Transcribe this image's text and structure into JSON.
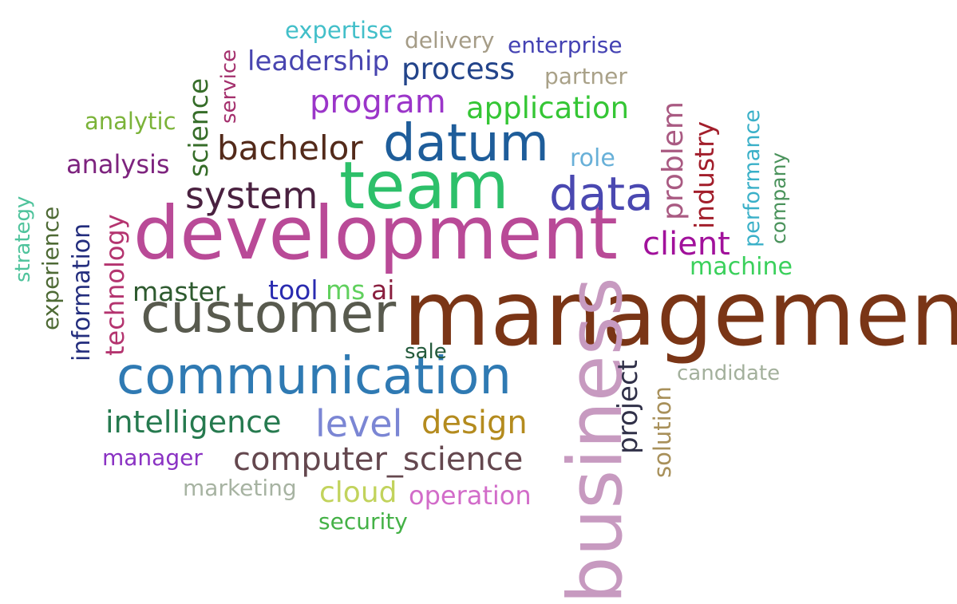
{
  "words": [
    {
      "text": "management",
      "color": "#7a3516"
    },
    {
      "text": "development",
      "color": "#b94a97"
    },
    {
      "text": "team",
      "color": "#2dc06a"
    },
    {
      "text": "communication",
      "color": "#2f7ab3"
    },
    {
      "text": "customer",
      "color": "#585a4e"
    },
    {
      "text": "datum",
      "color": "#1e5d9a"
    },
    {
      "text": "business",
      "color": "#c79ac0"
    },
    {
      "text": "data",
      "color": "#4a48b1"
    },
    {
      "text": "system",
      "color": "#4a2140"
    },
    {
      "text": "bachelor",
      "color": "#532a1a"
    },
    {
      "text": "program",
      "color": "#9b35c9"
    },
    {
      "text": "application",
      "color": "#35c635"
    },
    {
      "text": "process",
      "color": "#23448a"
    },
    {
      "text": "leadership",
      "color": "#4845b0"
    },
    {
      "text": "level",
      "color": "#7b86d4"
    },
    {
      "text": "design",
      "color": "#b48b1e"
    },
    {
      "text": "intelligence",
      "color": "#267a4f"
    },
    {
      "text": "computer_science",
      "color": "#64474e"
    },
    {
      "text": "client",
      "color": "#a1119b"
    },
    {
      "text": "problem",
      "color": "#a95a82"
    },
    {
      "text": "industry",
      "color": "#a21e2b"
    },
    {
      "text": "project",
      "color": "#303048"
    },
    {
      "text": "technology",
      "color": "#b4346f"
    },
    {
      "text": "information",
      "color": "#232d7d"
    },
    {
      "text": "science",
      "color": "#366d29"
    },
    {
      "text": "analysis",
      "color": "#7d237e"
    },
    {
      "text": "analytic",
      "color": "#7bb339"
    },
    {
      "text": "expertise",
      "color": "#42bfc9"
    },
    {
      "text": "delivery",
      "color": "#a59c87"
    },
    {
      "text": "enterprise",
      "color": "#4442b3"
    },
    {
      "text": "partner",
      "color": "#a9a188"
    },
    {
      "text": "service",
      "color": "#a4306d"
    },
    {
      "text": "role",
      "color": "#68b0d8"
    },
    {
      "text": "performance",
      "color": "#3ab0c8"
    },
    {
      "text": "company",
      "color": "#4b935c"
    },
    {
      "text": "machine",
      "color": "#3ad05b"
    },
    {
      "text": "master",
      "color": "#2e5a2f"
    },
    {
      "text": "tool",
      "color": "#2a2bb0"
    },
    {
      "text": "ms",
      "color": "#60d05d"
    },
    {
      "text": "ai",
      "color": "#8a1f3f"
    },
    {
      "text": "sale",
      "color": "#245a3c"
    },
    {
      "text": "candidate",
      "color": "#a3b09c"
    },
    {
      "text": "solution",
      "color": "#a8905a"
    },
    {
      "text": "manager",
      "color": "#8a32c3"
    },
    {
      "text": "marketing",
      "color": "#a7b3a2"
    },
    {
      "text": "cloud",
      "color": "#c2d35c"
    },
    {
      "text": "operation",
      "color": "#d26cc9"
    },
    {
      "text": "security",
      "color": "#44b146"
    },
    {
      "text": "strategy",
      "color": "#4fc39c"
    },
    {
      "text": "experience",
      "color": "#4e6a35"
    }
  ]
}
